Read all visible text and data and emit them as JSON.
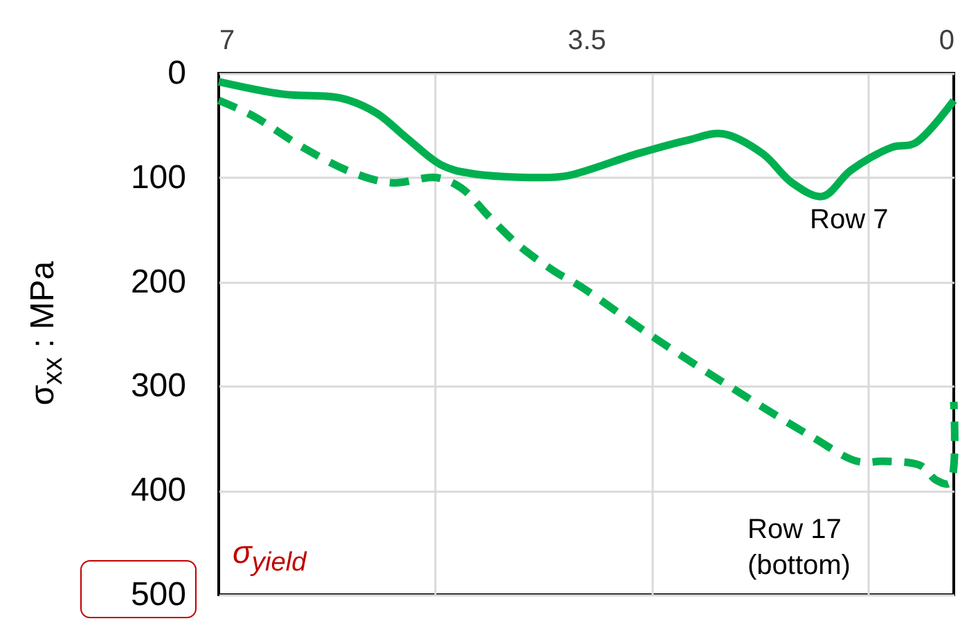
{
  "chart_data": {
    "type": "line",
    "ylabel": "σ$_{xx}$ : MPa",
    "xlim": [
      7,
      0
    ],
    "xticks": [
      7,
      {
        "value": 4.94,
        "label": null
      },
      3.5,
      {
        "value": 2.88,
        "label": null
      },
      {
        "value": 0.82,
        "label": null
      },
      0
    ],
    "ylim": [
      500,
      0
    ],
    "yticks": [
      0,
      100,
      200,
      300,
      400,
      500
    ],
    "grid": true,
    "series": [
      {
        "color": "#00b050",
        "line_style": "solid",
        "x": [
          7,
          6.39,
          5.83,
          5.5,
          5.21,
          4.88,
          4.6,
          3.94,
          3.67,
          3.01,
          2.53,
          2.2,
          1.82,
          1.54,
          1.25,
          0.98,
          0.59,
          0.37,
          0
        ],
        "values": [
          8,
          20,
          24,
          38,
          62,
          88,
          96,
          100,
          98,
          77,
          64,
          58,
          77,
          105,
          118,
          93,
          71,
          67,
          26
        ]
      },
      {
        "color": "#00b050",
        "line_style": "dashed",
        "x": [
          7,
          6.67,
          6.2,
          5.73,
          5.35,
          4.93,
          4.69,
          4.42,
          4.13,
          3.8,
          3.56,
          2.86,
          2.06,
          1.36,
          0.92,
          0.65,
          0.32,
          0.17,
          0.04,
          0
        ],
        "values": [
          26,
          41,
          71,
          95,
          105,
          100,
          110,
          138,
          166,
          190,
          204,
          253,
          305,
          348,
          372,
          372,
          376,
          390,
          393,
          315
        ]
      }
    ],
    "annotations": [
      "Row 7",
      "Row 17\n(bottom)",
      "σ$_{yield}$"
    ]
  }
}
